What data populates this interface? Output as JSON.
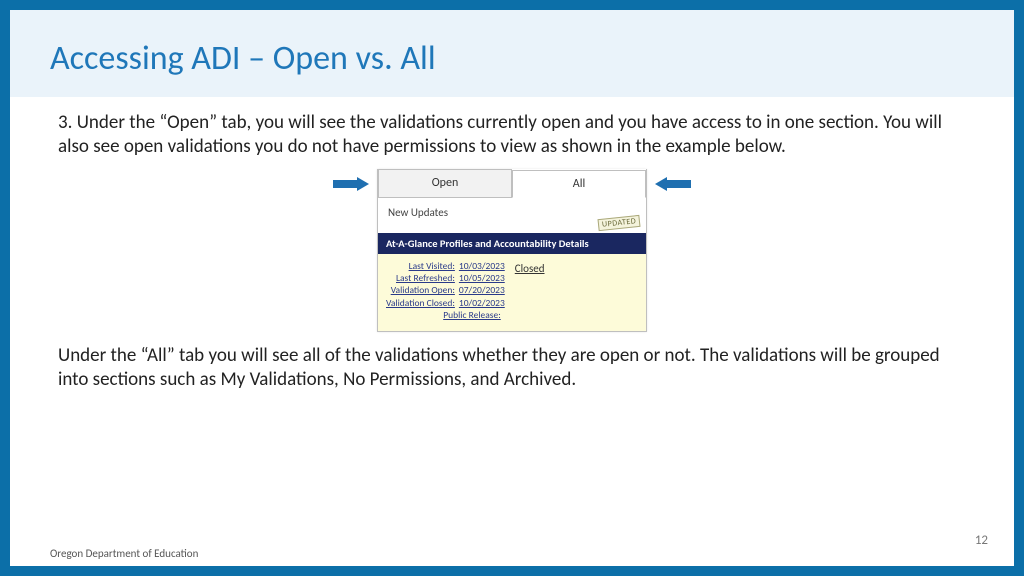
{
  "colors": {
    "border": "#0c6fa8",
    "header_band_bg": "#eaf3fa",
    "title": "#1f77b9",
    "arrow": "#1f6fb0",
    "panel_header_bg": "#1a2760",
    "panel_body_bg": "#fdfbd9",
    "link": "#2a3a8a"
  },
  "title": "Accessing ADI – Open vs. All",
  "paragraph1": "3. Under the “Open” tab, you will see the validations currently open and you have access to in one section. You will also see open validations you do not have permissions to view as shown in the example below.",
  "paragraph2": "Under the “All” tab you will see all of the validations whether they are open or not. The validations will be grouped into sections such as My Validations, No Permissions, and Archived.",
  "screenshot": {
    "tabs": {
      "open": "Open",
      "all": "All"
    },
    "new_updates": "New Updates",
    "updated_tag": "UPDATED",
    "panel_header": "At-A-Glance Profiles and Accountability Details",
    "closed_label": "Closed",
    "rows": [
      {
        "label": "Last Visited:",
        "value": "10/03/2023"
      },
      {
        "label": "Last Refreshed:",
        "value": "10/05/2023"
      },
      {
        "label": "Validation Open:",
        "value": "07/20/2023"
      },
      {
        "label": "Validation Closed:",
        "value": "10/02/2023"
      },
      {
        "label": "Public Release:",
        "value": ""
      }
    ]
  },
  "footer": "Oregon Department of Education",
  "page_number": "12"
}
